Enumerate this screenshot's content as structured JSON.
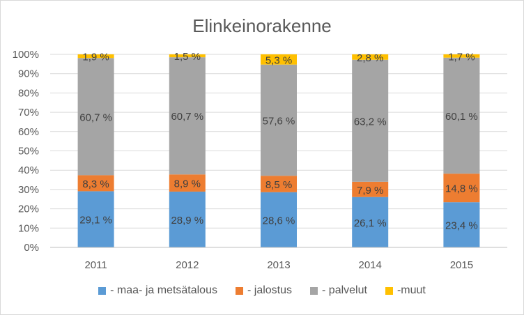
{
  "chart_data": {
    "type": "bar",
    "stacked": true,
    "title": "Elinkeinorakenne",
    "xlabel": "",
    "ylabel": "",
    "categories": [
      "2011",
      "2012",
      "2013",
      "2014",
      "2015"
    ],
    "ylim": [
      0,
      100
    ],
    "yticks": [
      "0%",
      "10%",
      "20%",
      "30%",
      "40%",
      "50%",
      "60%",
      "70%",
      "80%",
      "90%",
      "100%"
    ],
    "grid": true,
    "legend_position": "bottom",
    "series": [
      {
        "name": "- maa- ja metsätalous",
        "color": "#5b9bd5",
        "values": [
          29.1,
          28.9,
          28.6,
          26.1,
          23.4
        ],
        "labels": [
          "29,1 %",
          "28,9 %",
          "28,6 %",
          "26,1 %",
          "23,4 %"
        ]
      },
      {
        "name": "- jalostus",
        "color": "#ed7d31",
        "values": [
          8.3,
          8.9,
          8.5,
          7.9,
          14.8
        ],
        "labels": [
          "8,3 %",
          "8,9 %",
          "8,5 %",
          "7,9 %",
          "14,8 %"
        ]
      },
      {
        "name": "- palvelut",
        "color": "#a5a5a5",
        "values": [
          60.7,
          60.7,
          57.6,
          63.2,
          60.1
        ],
        "labels": [
          "60,7 %",
          "60,7 %",
          "57,6 %",
          "63,2 %",
          "60,1 %"
        ]
      },
      {
        "name": "-muut",
        "color": "#ffc000",
        "values": [
          1.9,
          1.5,
          5.3,
          2.8,
          1.7
        ],
        "labels": [
          "1,9 %",
          "1,5 %",
          "5,3 %",
          "2,8 %",
          "1,7 %"
        ]
      }
    ]
  }
}
